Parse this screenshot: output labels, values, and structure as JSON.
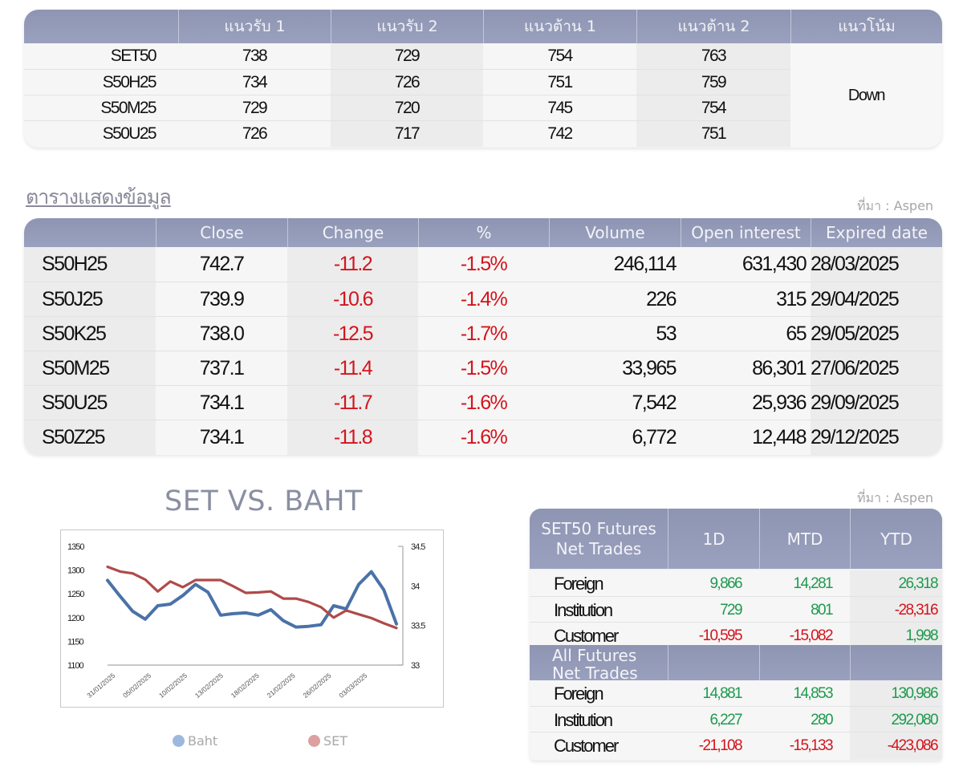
{
  "pivot_table": {
    "headers": [
      "",
      "แนวรับ 1",
      "แนวรับ 2",
      "แนวต้าน 1",
      "แนวต้าน 2",
      "แนวโน้ม"
    ],
    "rows": [
      {
        "symbol": "SET50",
        "s1": "738",
        "s2": "729",
        "r1": "754",
        "r2": "763"
      },
      {
        "symbol": "S50H25",
        "s1": "734",
        "s2": "726",
        "r1": "751",
        "r2": "759"
      },
      {
        "symbol": "S50M25",
        "s1": "729",
        "s2": "720",
        "r1": "745",
        "r2": "754"
      },
      {
        "symbol": "S50U25",
        "s1": "726",
        "s2": "717",
        "r1": "742",
        "r2": "751"
      }
    ],
    "trend": "Down"
  },
  "data_table": {
    "title": "ตารางแสดงข้อมูล",
    "source": "ที่มา : Aspen",
    "headers": [
      "",
      "Close",
      "Change",
      "%",
      "Volume",
      "Open interest",
      "Expired date"
    ],
    "rows": [
      {
        "symbol": "S50H25",
        "close": "742.7",
        "change": "-11.2",
        "pct": "-1.5%",
        "volume": "246,114",
        "oi": "631,430",
        "expiry": "28/03/2025"
      },
      {
        "symbol": "S50J25",
        "close": "739.9",
        "change": "-10.6",
        "pct": "-1.4%",
        "volume": "226",
        "oi": "315",
        "expiry": "29/04/2025"
      },
      {
        "symbol": "S50K25",
        "close": "738.0",
        "change": "-12.5",
        "pct": "-1.7%",
        "volume": "53",
        "oi": "65",
        "expiry": "29/05/2025"
      },
      {
        "symbol": "S50M25",
        "close": "737.1",
        "change": "-11.4",
        "pct": "-1.5%",
        "volume": "33,965",
        "oi": "86,301",
        "expiry": "27/06/2025"
      },
      {
        "symbol": "S50U25",
        "close": "734.1",
        "change": "-11.7",
        "pct": "-1.6%",
        "volume": "7,542",
        "oi": "25,936",
        "expiry": "29/09/2025"
      },
      {
        "symbol": "S50Z25",
        "close": "734.1",
        "change": "-11.8",
        "pct": "-1.6%",
        "volume": "6,772",
        "oi": "12,448",
        "expiry": "29/12/2025"
      }
    ]
  },
  "net_trades": {
    "source": "ที่มา : Aspen",
    "headers": [
      "SET50 Futures Net Trades",
      "1D",
      "MTD",
      "YTD"
    ],
    "set50_rows": [
      {
        "label": "Foreign",
        "d1": "9,866",
        "mtd": "14,281",
        "ytd": "26,318",
        "d1c": "green",
        "mtdc": "green",
        "ytdc": "green"
      },
      {
        "label": "Institution",
        "d1": "729",
        "mtd": "801",
        "ytd": "-28,316",
        "d1c": "green",
        "mtdc": "green",
        "ytdc": "red"
      },
      {
        "label": "Customer",
        "d1": "-10,595",
        "mtd": "-15,082",
        "ytd": "1,998",
        "d1c": "red",
        "mtdc": "red",
        "ytdc": "green"
      }
    ],
    "all_header": "All Futures Net Trades",
    "all_rows": [
      {
        "label": "Foreign",
        "d1": "14,881",
        "mtd": "14,853",
        "ytd": "130,986",
        "d1c": "green",
        "mtdc": "green",
        "ytdc": "green"
      },
      {
        "label": "Institution",
        "d1": "6,227",
        "mtd": "280",
        "ytd": "292,080",
        "d1c": "green",
        "mtdc": "green",
        "ytdc": "green"
      },
      {
        "label": "Customer",
        "d1": "-21,108",
        "mtd": "-15,133",
        "ytd": "-423,086",
        "d1c": "red",
        "mtdc": "red",
        "ytdc": "red"
      }
    ]
  },
  "colors": {
    "header_bg": "#9299b8",
    "negative": "#d4141c",
    "positive": "#1f9a4e",
    "baht_line": "#4a72a8",
    "set_line": "#b04a4a"
  },
  "chart_data": {
    "type": "line",
    "title": "SET VS. BAHT",
    "xlabel": "",
    "ylabel": "",
    "x_tick_labels": [
      "31/01/2025",
      "05/02/2025",
      "10/02/2025",
      "13/02/2025",
      "18/02/2025",
      "21/02/2025",
      "26/02/2025",
      "03/03/2025"
    ],
    "y_left": {
      "ticks": [
        1100,
        1150,
        1200,
        1250,
        1300,
        1350
      ],
      "range": [
        1100,
        1350
      ]
    },
    "y_right": {
      "ticks": [
        33,
        33.5,
        34,
        34.5
      ],
      "range": [
        33,
        34.5
      ]
    },
    "legend": [
      "Baht",
      "SET"
    ],
    "legend_position": "bottom",
    "grid": false,
    "series": [
      {
        "name": "Baht",
        "axis": "right",
        "color": "#4a72a8",
        "values": [
          34.07,
          33.87,
          33.68,
          33.58,
          33.75,
          33.77,
          33.88,
          34.02,
          33.92,
          33.63,
          33.65,
          33.66,
          33.63,
          33.7,
          33.56,
          33.48,
          33.49,
          33.51,
          33.75,
          33.71,
          34.02,
          34.18,
          33.95,
          33.52
        ]
      },
      {
        "name": "SET",
        "axis": "left",
        "color": "#b04a4a",
        "values": [
          1307,
          1297,
          1293,
          1280,
          1255,
          1276,
          1264,
          1279,
          1279,
          1279,
          1266,
          1252,
          1253,
          1255,
          1240,
          1240,
          1233,
          1222,
          1200,
          1215,
          1207,
          1199,
          1188,
          1178
        ]
      }
    ]
  }
}
